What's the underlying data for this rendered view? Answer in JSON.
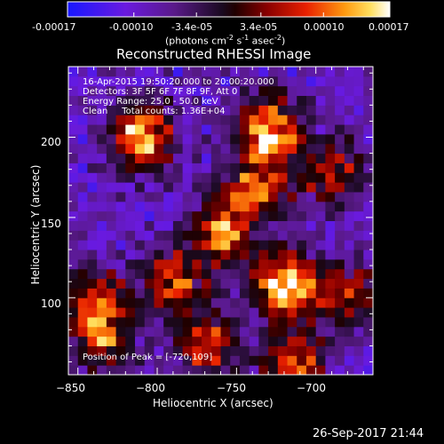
{
  "colorbar": {
    "ticks": [
      "-0.00017",
      "-0.00010",
      "-3.4e-05",
      "3.4e-05",
      "0.00010",
      "0.00017"
    ],
    "units_prefix": "(photons cm",
    "units_exp1": "-2",
    "units_mid1": " s",
    "units_exp2": "-1",
    "units_mid2": " asec",
    "units_exp3": "-2",
    "units_suffix": ")",
    "range": [
      -0.00017,
      0.00017
    ]
  },
  "title": "Reconstructed RHESSI Image",
  "annotations": {
    "time": "16-Apr-2015 19:50:20.000 to 20:00:20.000",
    "detectors": "Detectors: 3F 5F 6F 7F 8F 9F, Att 0",
    "energy": "Energy Range: 25.0 - 50.0 keV",
    "clean": "Clean     Total counts: 1.36E+04",
    "peak": "Position of Peak = [-720,109]"
  },
  "footer_date": "26-Sep-2017 21:44",
  "chart_data": {
    "type": "heatmap",
    "title": "Reconstructed RHESSI Image",
    "xlabel": "Heliocentric X (arcsec)",
    "ylabel": "Heliocentric Y (arcsec)",
    "xlim": [
      -856,
      -664
    ],
    "ylim": [
      52,
      244
    ],
    "x_ticks": [
      -850,
      -800,
      -750,
      -700
    ],
    "x_tick_labels": [
      "−850",
      "−800",
      "−750",
      "−700"
    ],
    "y_ticks": [
      100,
      150,
      200
    ],
    "y_tick_labels": [
      "100",
      "150",
      "200"
    ],
    "peak_position": [
      -720,
      109
    ],
    "hotspots": [
      {
        "x": -810,
        "y": 201,
        "value": 0.00015
      },
      {
        "x": -730,
        "y": 205,
        "value": 0.00016
      },
      {
        "x": -738,
        "y": 168,
        "value": 8e-05
      },
      {
        "x": -760,
        "y": 140,
        "value": 0.0001
      },
      {
        "x": -720,
        "y": 109,
        "value": 0.00017
      },
      {
        "x": -790,
        "y": 110,
        "value": 9e-05
      },
      {
        "x": -838,
        "y": 100,
        "value": 7e-05
      },
      {
        "x": -835,
        "y": 74,
        "value": 7e-05
      },
      {
        "x": -768,
        "y": 72,
        "value": 7e-05
      },
      {
        "x": -715,
        "y": 60,
        "value": 9e-05
      },
      {
        "x": -682,
        "y": 102,
        "value": 6e-05
      },
      {
        "x": -690,
        "y": 178,
        "value": 6e-05
      }
    ],
    "colorscale": "red-temperature (blue-purple negative, black zero, red-yellow-white positive)"
  }
}
